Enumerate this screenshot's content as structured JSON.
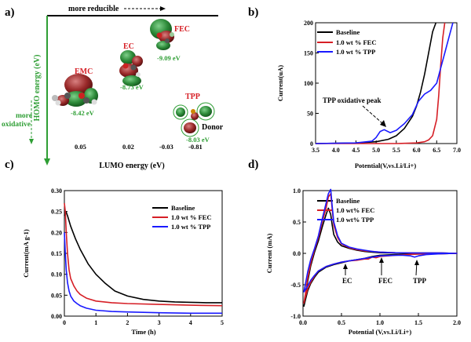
{
  "colors": {
    "black": "#000000",
    "red": "#d61f26",
    "blue": "#1a1aff",
    "green": "#2e9e34",
    "axis": "#000000"
  },
  "panel_a": {
    "letter": "a)",
    "top_label": "more reducible",
    "homo_axis": "HOMO energy (eV)",
    "oxidative": [
      "more",
      "oxidative"
    ],
    "lumo_axis": "LUMO energy (eV)",
    "molecules": [
      {
        "name": "EMC",
        "homo": "-8.42 eV",
        "lumo": "0.05"
      },
      {
        "name": "EC",
        "homo": "-8.73 eV",
        "lumo": "0.02"
      },
      {
        "name": "FEC",
        "homo": "-9.09 eV",
        "lumo": "-0.03"
      },
      {
        "name": "TPP",
        "homo": "-8.03 eV",
        "lumo": "-0.81"
      }
    ],
    "donor": "Donor"
  },
  "chart_data": [
    {
      "panel": "b)",
      "type": "line",
      "xlabel": "Potential(V,vs.Li/Li+)",
      "ylabel": "Current(uA)",
      "xlim": [
        3.5,
        7.0
      ],
      "ylim": [
        0,
        200
      ],
      "xticks": [
        "3.5",
        "4.0",
        "4.5",
        "5.0",
        "5.5",
        "6.0",
        "6.5",
        "7.0"
      ],
      "yticks": [
        "0",
        "50",
        "100",
        "150",
        "200"
      ],
      "annotation": "TPP oxidative peak",
      "series": [
        {
          "name": "Baseline",
          "color": "#000000",
          "x": [
            3.5,
            4.5,
            5.0,
            5.3,
            5.5,
            5.7,
            5.9,
            6.0,
            6.1,
            6.2,
            6.3,
            6.4,
            6.48
          ],
          "y": [
            0,
            1,
            3,
            7,
            13,
            25,
            45,
            62,
            85,
            115,
            150,
            185,
            200
          ]
        },
        {
          "name": "1.0 wt % FEC",
          "color": "#d61f26",
          "x": [
            3.5,
            5.5,
            6.0,
            6.2,
            6.3,
            6.4,
            6.5,
            6.55,
            6.6,
            6.65,
            6.7
          ],
          "y": [
            0,
            0,
            1,
            3,
            6,
            13,
            40,
            80,
            130,
            175,
            200
          ]
        },
        {
          "name": "1.0 wt % TPP",
          "color": "#1a1aff",
          "x": [
            3.5,
            4.5,
            4.9,
            5.0,
            5.1,
            5.2,
            5.35,
            5.5,
            5.7,
            5.9,
            6.05,
            6.2,
            6.35,
            6.5,
            6.6,
            6.7,
            6.8,
            6.9
          ],
          "y": [
            0,
            1,
            4,
            10,
            20,
            23,
            18,
            22,
            33,
            48,
            70,
            82,
            88,
            100,
            125,
            150,
            175,
            200
          ]
        }
      ]
    },
    {
      "panel": "c)",
      "type": "line",
      "xlabel": "Time (h)",
      "ylabel": "Current(mA g-1)",
      "xlim": [
        0,
        5
      ],
      "ylim": [
        0,
        0.3
      ],
      "xticks": [
        "0",
        "1",
        "2",
        "3",
        "4",
        "5"
      ],
      "yticks": [
        "0.00",
        "0.05",
        "0.10",
        "0.15",
        "0.20",
        "0.25",
        "0.30"
      ],
      "series": [
        {
          "name": "Baseline",
          "color": "#000000",
          "x": [
            0,
            0.05,
            0.1,
            0.2,
            0.35,
            0.5,
            0.75,
            1.0,
            1.3,
            1.6,
            2.0,
            2.5,
            3.0,
            3.5,
            4.0,
            4.5,
            5.0
          ],
          "y": [
            0.24,
            0.25,
            0.24,
            0.215,
            0.185,
            0.16,
            0.125,
            0.1,
            0.078,
            0.06,
            0.048,
            0.04,
            0.036,
            0.034,
            0.033,
            0.032,
            0.032
          ]
        },
        {
          "name": "1.0 wt % FEC",
          "color": "#d61f26",
          "x": [
            0,
            0.03,
            0.06,
            0.1,
            0.15,
            0.2,
            0.3,
            0.4,
            0.5,
            0.7,
            1.0,
            1.5,
            2.0,
            3.0,
            4.0,
            5.0
          ],
          "y": [
            0.27,
            0.25,
            0.2,
            0.15,
            0.11,
            0.09,
            0.072,
            0.06,
            0.052,
            0.043,
            0.036,
            0.032,
            0.03,
            0.028,
            0.026,
            0.025
          ]
        },
        {
          "name": "1.0 wt % TPP",
          "color": "#1a1aff",
          "x": [
            0,
            0.03,
            0.06,
            0.1,
            0.15,
            0.2,
            0.3,
            0.4,
            0.5,
            0.7,
            1.0,
            1.5,
            2.0,
            3.0,
            4.0,
            5.0
          ],
          "y": [
            0.2,
            0.15,
            0.11,
            0.08,
            0.06,
            0.048,
            0.036,
            0.03,
            0.025,
            0.019,
            0.014,
            0.011,
            0.01,
            0.008,
            0.007,
            0.007
          ]
        }
      ]
    },
    {
      "panel": "d)",
      "type": "line",
      "xlabel": "Potential (V,vs.Li/Li+)",
      "ylabel": "Current (mA)",
      "xlim": [
        0,
        2.0
      ],
      "ylim": [
        -1.0,
        1.0
      ],
      "xticks": [
        "0.0",
        "0.5",
        "1.0",
        "1.5",
        "2.0"
      ],
      "yticks": [
        "-1.0",
        "-0.5",
        "0.0",
        "0.5",
        "1.0"
      ],
      "annotations": [
        "EC",
        "FEC",
        "TPP"
      ],
      "series": [
        {
          "name": "Baseline",
          "color": "#000000",
          "x": [
            0.01,
            0.03,
            0.06,
            0.1,
            0.15,
            0.2,
            0.25,
            0.3,
            0.33,
            0.36,
            0.38,
            0.4,
            0.45,
            0.5,
            0.6,
            0.7,
            0.8,
            0.9,
            1.0,
            1.2,
            1.5,
            1.8,
            2.0,
            1.8,
            1.5,
            1.2,
            1.0,
            0.9,
            0.8,
            0.7,
            0.6,
            0.5,
            0.4,
            0.3,
            0.2,
            0.15,
            0.1,
            0.06,
            0.03,
            0.01
          ],
          "y": [
            -0.85,
            -0.72,
            -0.45,
            -0.2,
            0.02,
            0.2,
            0.42,
            0.62,
            0.72,
            0.62,
            0.45,
            0.3,
            0.18,
            0.12,
            0.08,
            0.05,
            0.03,
            0.02,
            0.01,
            0.005,
            0.005,
            0.005,
            0.0,
            -0.005,
            -0.01,
            -0.02,
            -0.03,
            -0.05,
            -0.08,
            -0.1,
            -0.12,
            -0.15,
            -0.18,
            -0.22,
            -0.3,
            -0.38,
            -0.48,
            -0.6,
            -0.75,
            -0.85
          ]
        },
        {
          "name": "1.0 wt% FEC",
          "color": "#d61f26",
          "x": [
            0.01,
            0.03,
            0.06,
            0.1,
            0.15,
            0.2,
            0.25,
            0.3,
            0.33,
            0.36,
            0.38,
            0.4,
            0.45,
            0.5,
            0.6,
            0.7,
            0.8,
            0.9,
            1.0,
            1.2,
            1.5,
            1.8,
            2.0,
            1.8,
            1.5,
            1.2,
            1.0,
            0.95,
            0.9,
            0.85,
            0.8,
            0.7,
            0.6,
            0.5,
            0.4,
            0.3,
            0.2,
            0.15,
            0.1,
            0.06,
            0.03,
            0.01
          ],
          "y": [
            -0.8,
            -0.66,
            -0.4,
            -0.16,
            0.06,
            0.25,
            0.5,
            0.72,
            0.9,
            0.95,
            0.7,
            0.45,
            0.25,
            0.15,
            0.09,
            0.06,
            0.04,
            0.03,
            0.02,
            0.01,
            0.005,
            0.005,
            0.0,
            -0.005,
            -0.01,
            -0.03,
            -0.05,
            -0.07,
            -0.06,
            -0.09,
            -0.09,
            -0.11,
            -0.12,
            -0.14,
            -0.17,
            -0.21,
            -0.28,
            -0.36,
            -0.46,
            -0.57,
            -0.7,
            -0.8
          ]
        },
        {
          "name": "1.0 wt% TPP",
          "color": "#1a1aff",
          "x": [
            0.01,
            0.03,
            0.06,
            0.1,
            0.15,
            0.2,
            0.25,
            0.3,
            0.33,
            0.36,
            0.38,
            0.4,
            0.45,
            0.5,
            0.6,
            0.7,
            0.8,
            0.9,
            1.0,
            1.2,
            1.5,
            1.8,
            2.0,
            1.8,
            1.6,
            1.5,
            1.45,
            1.4,
            1.3,
            1.2,
            1.0,
            0.9,
            0.8,
            0.7,
            0.6,
            0.5,
            0.4,
            0.3,
            0.2,
            0.15,
            0.1,
            0.06,
            0.03,
            0.01
          ],
          "y": [
            -0.62,
            -0.5,
            -0.3,
            -0.1,
            0.08,
            0.28,
            0.55,
            0.8,
            0.95,
            1.02,
            0.75,
            0.5,
            0.28,
            0.16,
            0.1,
            0.07,
            0.05,
            0.03,
            0.02,
            0.01,
            0.005,
            0.005,
            0.0,
            -0.005,
            -0.02,
            -0.04,
            -0.06,
            -0.04,
            -0.03,
            -0.03,
            -0.04,
            -0.06,
            -0.08,
            -0.1,
            -0.12,
            -0.14,
            -0.17,
            -0.21,
            -0.28,
            -0.35,
            -0.43,
            -0.52,
            -0.58,
            -0.62
          ]
        }
      ]
    }
  ]
}
